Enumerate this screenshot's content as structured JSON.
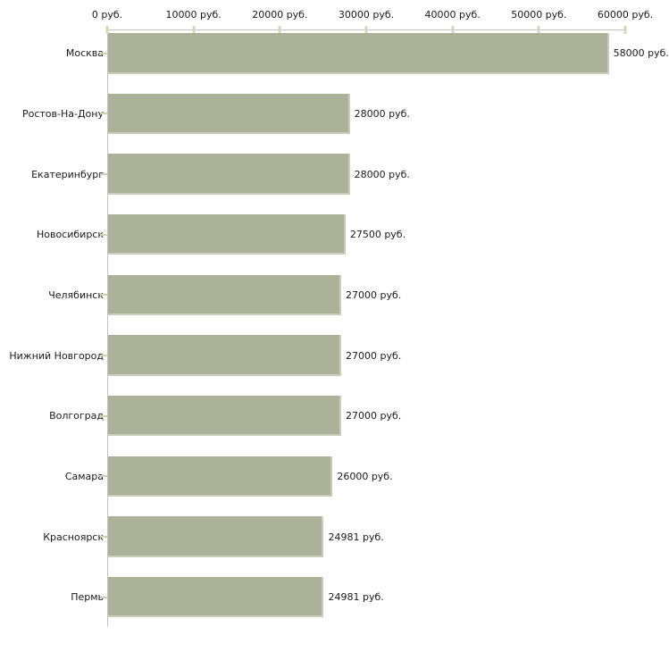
{
  "chart_data": {
    "type": "bar",
    "orientation": "horizontal",
    "title": "",
    "xlabel": "",
    "ylabel": "",
    "categories": [
      "Москва",
      "Ростов-На-Дону",
      "Екатеринбург",
      "Новосибирск",
      "Челябинск",
      "Нижний Новгород",
      "Волгоград",
      "Самара",
      "Красноярск",
      "Пермь"
    ],
    "values": [
      58000,
      28000,
      28000,
      27500,
      27000,
      27000,
      27000,
      26000,
      24981,
      24981
    ],
    "value_labels": [
      "58000 руб.",
      "28000 руб.",
      "28000 руб.",
      "27500 руб.",
      "27000 руб.",
      "27000 руб.",
      "27000 руб.",
      "26000 руб.",
      "24981 руб.",
      "24981 руб."
    ],
    "x_axis": {
      "position": "top",
      "range": [
        0,
        60000
      ],
      "ticks": [
        0,
        10000,
        20000,
        30000,
        40000,
        50000,
        60000
      ],
      "tick_labels": [
        "0 руб.",
        "10000 руб.",
        "20000 руб.",
        "30000 руб.",
        "40000 руб.",
        "50000 руб.",
        "60000 руб."
      ]
    },
    "grid": false,
    "legend": false,
    "colors": {
      "bar": "#abb299",
      "axis_line": "#c4c4c4",
      "tick_mark": "#d5d7bd",
      "text": "#1a1a1a",
      "background": "#ffffff"
    }
  }
}
